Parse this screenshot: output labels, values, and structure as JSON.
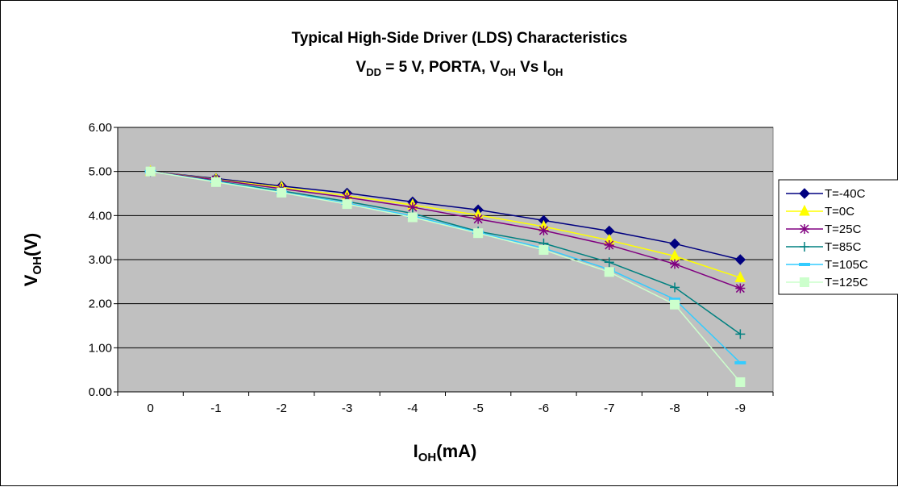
{
  "chart_data": {
    "type": "line",
    "title": "Typical High-Side Driver (LDS) Characteristics",
    "subtitle": {
      "vdd_main": "V",
      "vdd_sub": "DD",
      "vdd_rest": " = 5 V, PORTA, ",
      "voh_main": "V",
      "voh_sub": "OH",
      "vs": " Vs ",
      "ioh_main": "I",
      "ioh_sub": "OH"
    },
    "ylabel": {
      "main": "V",
      "sub": "OH",
      "rest": "(V)"
    },
    "xlabel": {
      "main": "I",
      "sub": "OH",
      "rest": "(mA)"
    },
    "x": [
      0,
      -1,
      -2,
      -3,
      -4,
      -5,
      -6,
      -7,
      -8,
      -9
    ],
    "x_tick_labels": [
      "0",
      "-1",
      "-2",
      "-3",
      "-4",
      "-5",
      "-6",
      "-7",
      "-8",
      "-9"
    ],
    "ylim": [
      0,
      6
    ],
    "y_ticks": [
      0,
      1,
      2,
      3,
      4,
      5,
      6
    ],
    "y_tick_labels": [
      "0.00",
      "1.00",
      "2.00",
      "3.00",
      "4.00",
      "5.00",
      "6.00"
    ],
    "grid": "horizontal",
    "plot_background": "#c0c0c0",
    "legend_position": "right",
    "series": [
      {
        "name": "T=-40C",
        "color": "#000080",
        "marker": "diamond",
        "values": [
          5.0,
          4.84,
          4.67,
          4.51,
          4.31,
          4.13,
          3.89,
          3.65,
          3.36,
          3.0
        ]
      },
      {
        "name": "T=0C",
        "color": "#ffff00",
        "marker": "triangle",
        "values": [
          5.0,
          4.82,
          4.64,
          4.45,
          4.24,
          4.01,
          3.75,
          3.44,
          3.08,
          2.59
        ]
      },
      {
        "name": "T=25C",
        "color": "#800080",
        "marker": "asterisk",
        "values": [
          5.0,
          4.81,
          4.61,
          4.41,
          4.19,
          3.92,
          3.66,
          3.33,
          2.9,
          2.35
        ]
      },
      {
        "name": "T=85C",
        "color": "#008080",
        "marker": "plus",
        "values": [
          5.0,
          4.78,
          4.56,
          4.32,
          4.05,
          3.64,
          3.37,
          2.94,
          2.37,
          1.31
        ]
      },
      {
        "name": "T=105C",
        "color": "#33ccff",
        "marker": "dash",
        "values": [
          5.0,
          4.77,
          4.53,
          4.28,
          3.99,
          3.62,
          3.26,
          2.78,
          2.1,
          0.66
        ]
      },
      {
        "name": "T=125C",
        "color": "#ccffcc",
        "marker": "square",
        "values": [
          5.0,
          4.76,
          4.52,
          4.26,
          3.96,
          3.6,
          3.22,
          2.72,
          1.98,
          0.22
        ]
      }
    ]
  }
}
